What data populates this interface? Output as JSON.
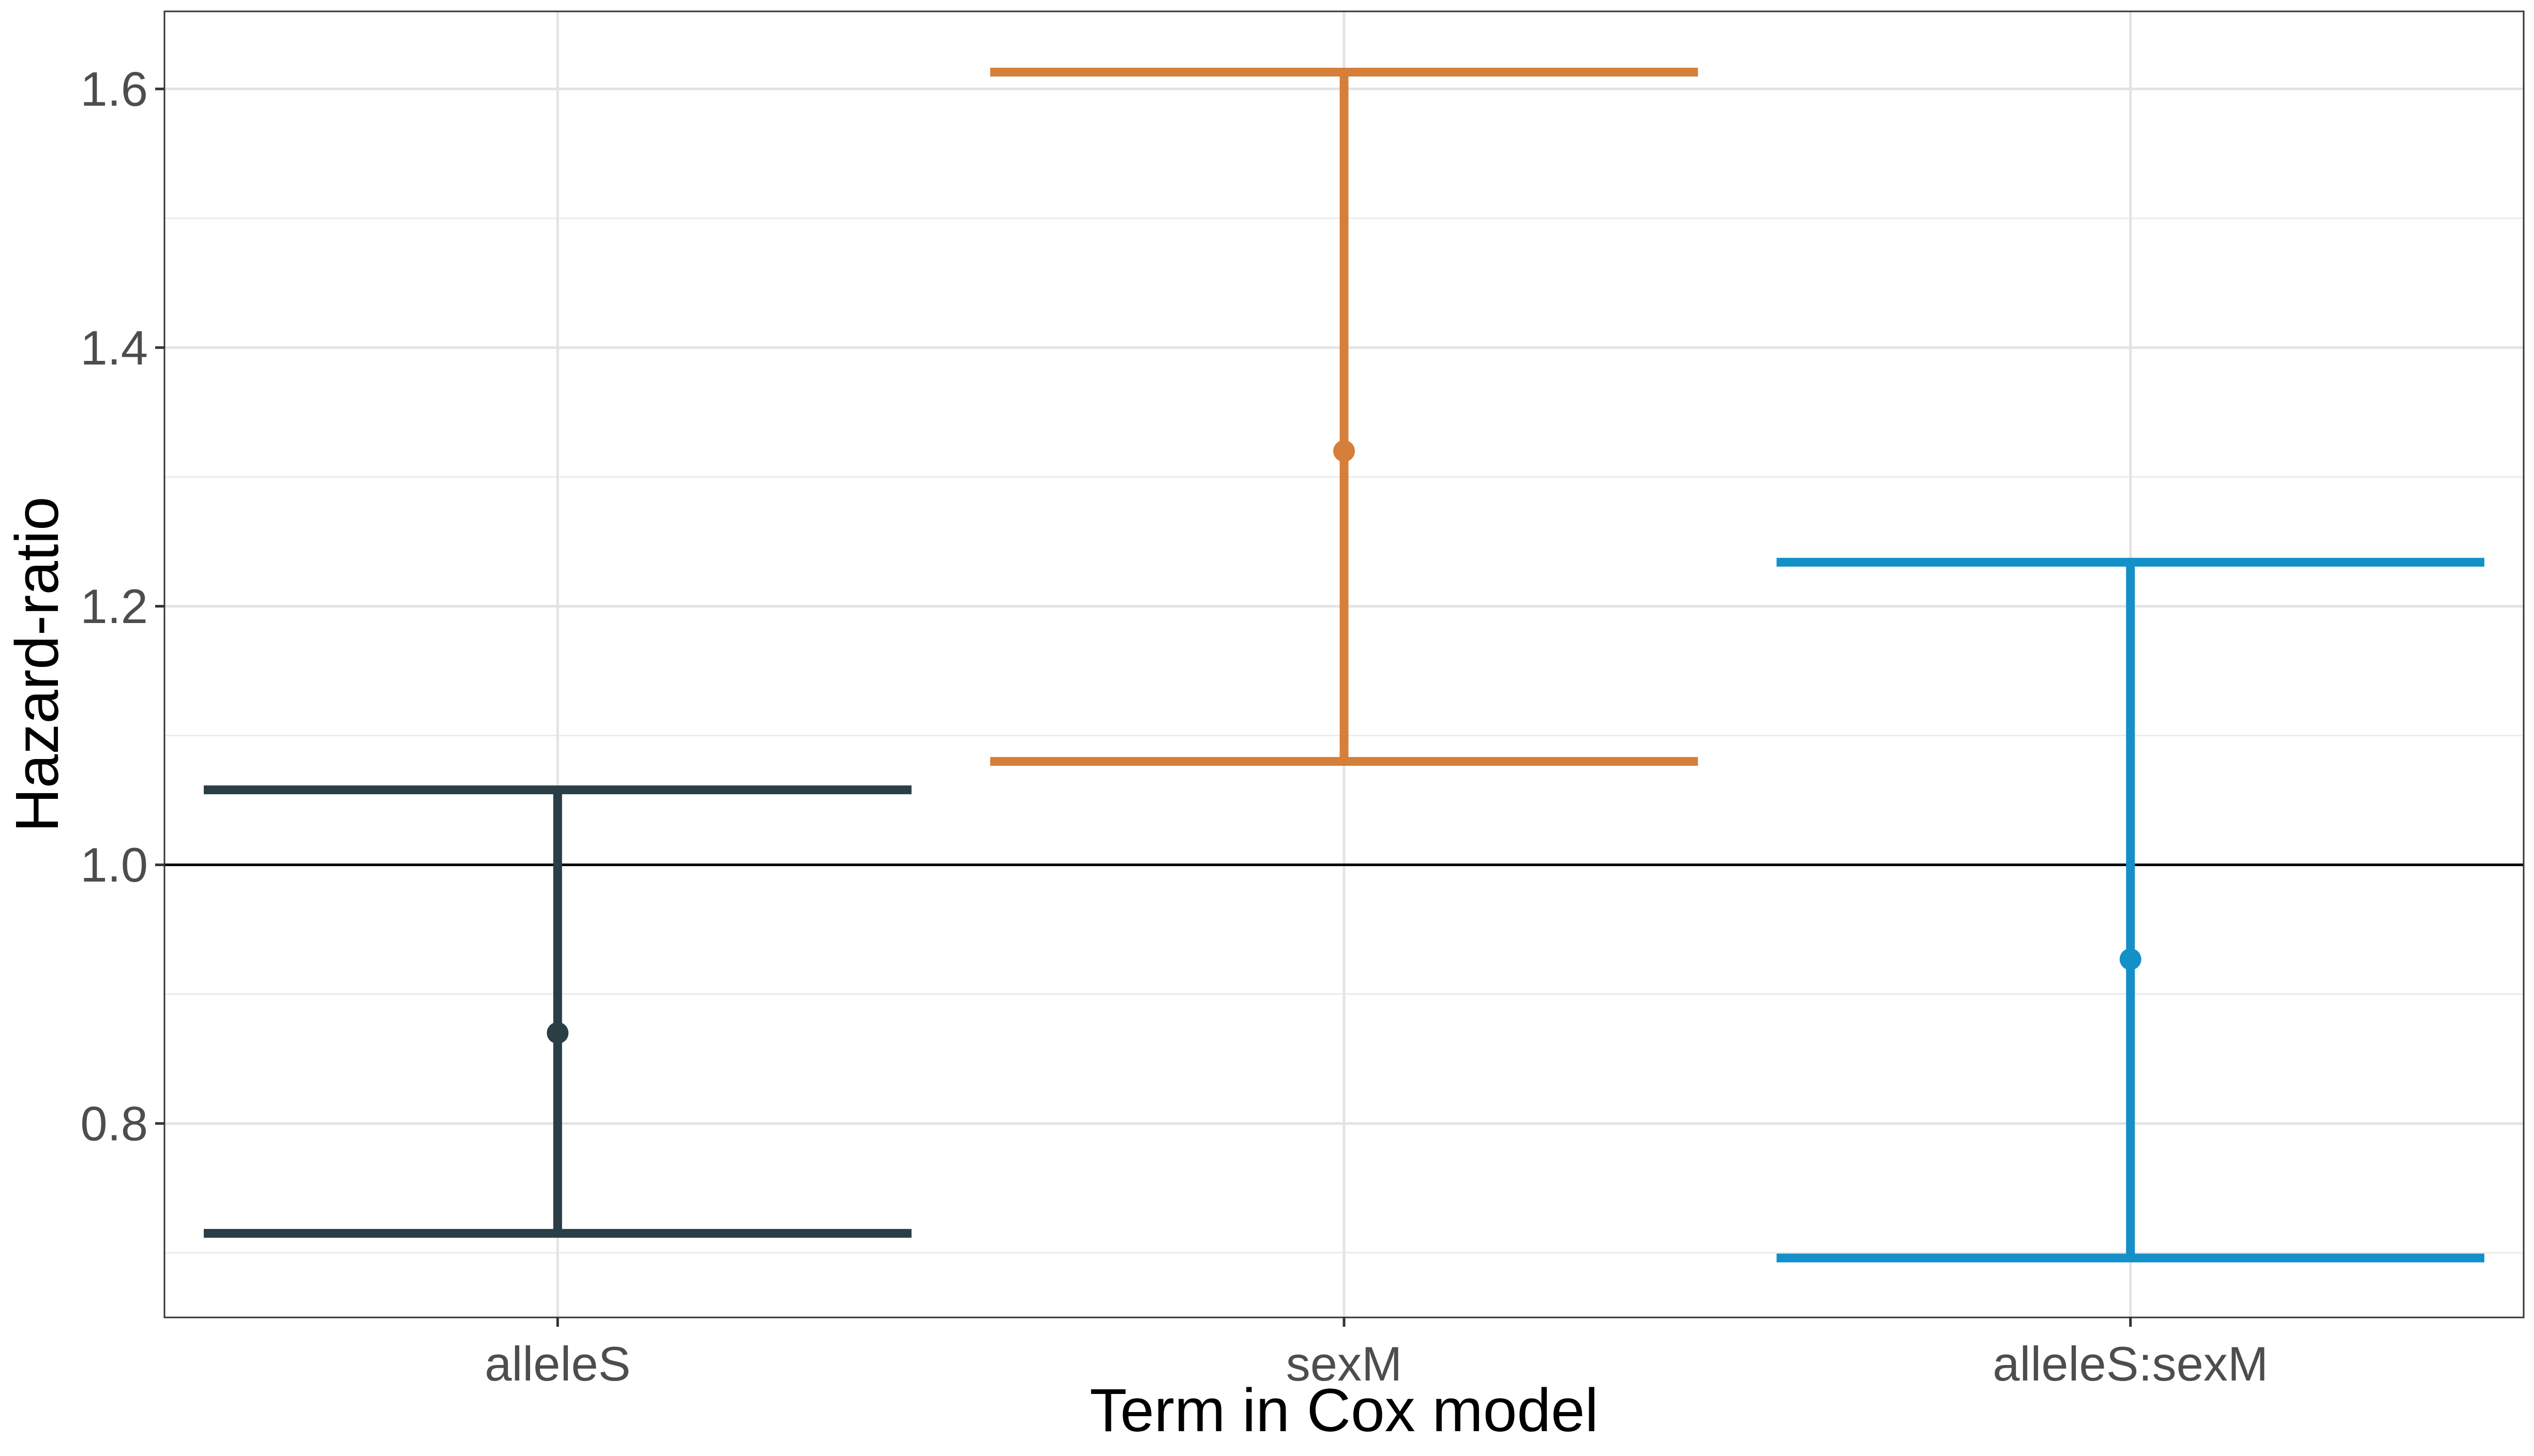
{
  "chart_data": {
    "type": "errorbar",
    "title": "",
    "xlabel": "Term in Cox model",
    "ylabel": "Hazard-ratio",
    "categories": [
      "alleleS",
      "sexM",
      "alleleS:sexM"
    ],
    "ylim": [
      0.65,
      1.66
    ],
    "y_major_ticks": [
      0.8,
      1.0,
      1.2,
      1.4,
      1.6
    ],
    "y_minor_ticks": [
      0.7,
      0.9,
      1.1,
      1.3,
      1.5
    ],
    "y_tick_labels": [
      "0.8",
      "1.0",
      "1.2",
      "1.4",
      "1.6"
    ],
    "reference_line": 1.0,
    "grid": true,
    "series": [
      {
        "term": "alleleS",
        "estimate": 0.87,
        "lower": 0.715,
        "upper": 1.058,
        "color": "#2a3e46"
      },
      {
        "term": "sexM",
        "estimate": 1.32,
        "lower": 1.08,
        "upper": 1.613,
        "color": "#d57f3a"
      },
      {
        "term": "alleleS:sexM",
        "estimate": 0.927,
        "lower": 0.696,
        "upper": 1.234,
        "color": "#1490c8"
      }
    ]
  }
}
